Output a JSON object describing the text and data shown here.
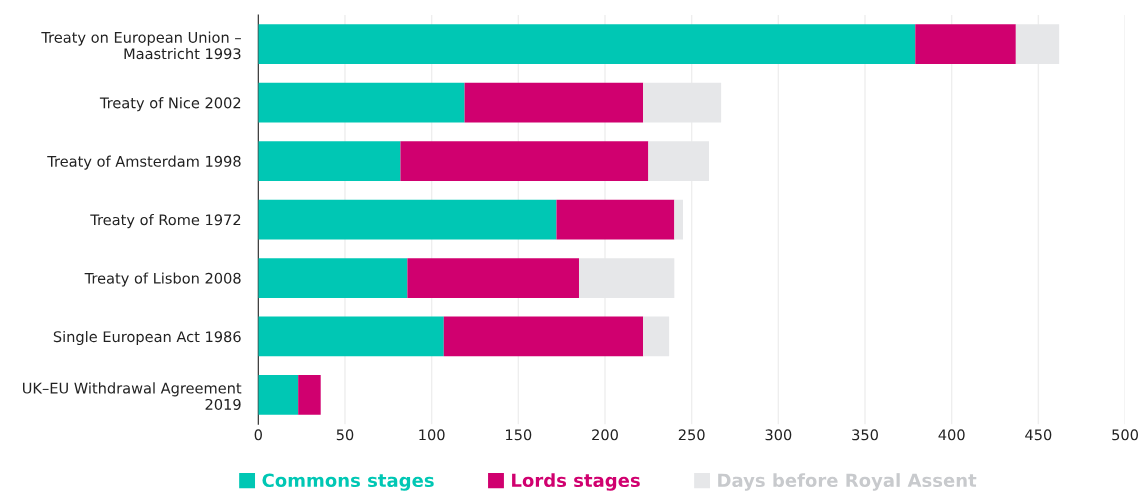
{
  "chart_data": {
    "type": "bar",
    "orientation": "horizontal",
    "stacked": true,
    "categories": [
      "Treaty on European Union –\nMaastricht 1993",
      "Treaty of Nice 2002",
      "Treaty of Amsterdam 1998",
      "Treaty of Rome 1972",
      "Treaty of Lisbon 2008",
      "Single European Act 1986",
      "UK–EU Withdrawal Agreement\n2019"
    ],
    "series": [
      {
        "name": "Commons stages",
        "color": "#00c7b4",
        "values": [
          379,
          119,
          82,
          172,
          86,
          107,
          23
        ]
      },
      {
        "name": "Lords stages",
        "color": "#d0006f",
        "values": [
          58,
          103,
          143,
          68,
          99,
          115,
          13
        ]
      },
      {
        "name": "Days before Royal Assent",
        "color": "#e6e7e9",
        "values": [
          25,
          45,
          35,
          5,
          55,
          15,
          0
        ]
      }
    ],
    "xlim": [
      0,
      500
    ],
    "xticks": [
      0,
      50,
      100,
      150,
      200,
      250,
      300,
      350,
      400,
      450,
      500
    ],
    "grid": "x",
    "legend": "bottom"
  }
}
